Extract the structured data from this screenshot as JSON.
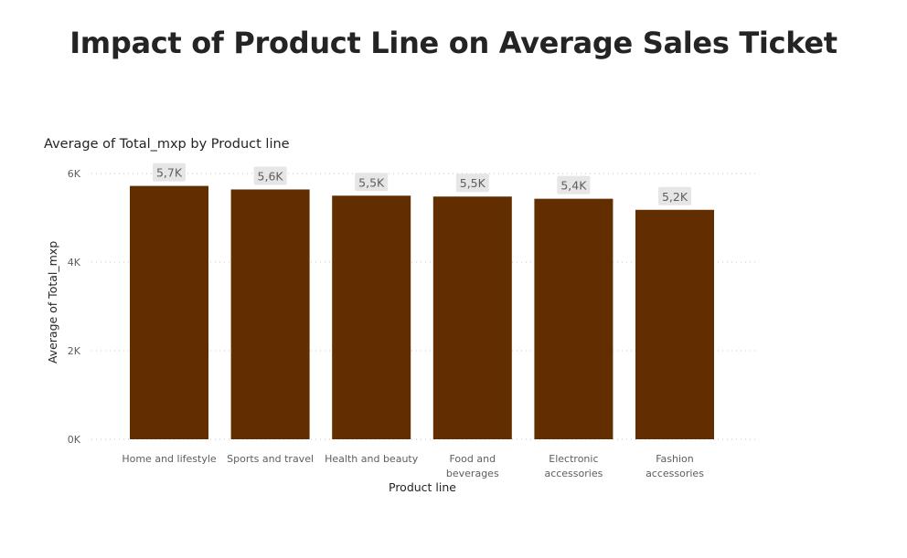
{
  "page": {
    "title": "Impact of Product Line on Average Sales Ticket"
  },
  "chart_data": {
    "type": "bar",
    "title": "Average of Total_mxp by Product line",
    "xlabel": "Product line",
    "ylabel": "Average of Total_mxp",
    "categories": [
      [
        "Home and lifestyle"
      ],
      [
        "Sports and travel"
      ],
      [
        "Health and beauty"
      ],
      [
        "Food and",
        "beverages"
      ],
      [
        "Electronic",
        "accessories"
      ],
      [
        "Fashion",
        "accessories"
      ]
    ],
    "values": [
      5720,
      5640,
      5500,
      5480,
      5430,
      5180
    ],
    "data_labels": [
      "5,7K",
      "5,6K",
      "5,5K",
      "5,5K",
      "5,4K",
      "5,2K"
    ],
    "ylim": [
      0,
      6000
    ],
    "yticks": [
      0,
      2000,
      4000,
      6000
    ],
    "ytick_labels": [
      "0K",
      "2K",
      "4K",
      "6K"
    ],
    "grid": true,
    "bar_color": "#622e00"
  }
}
